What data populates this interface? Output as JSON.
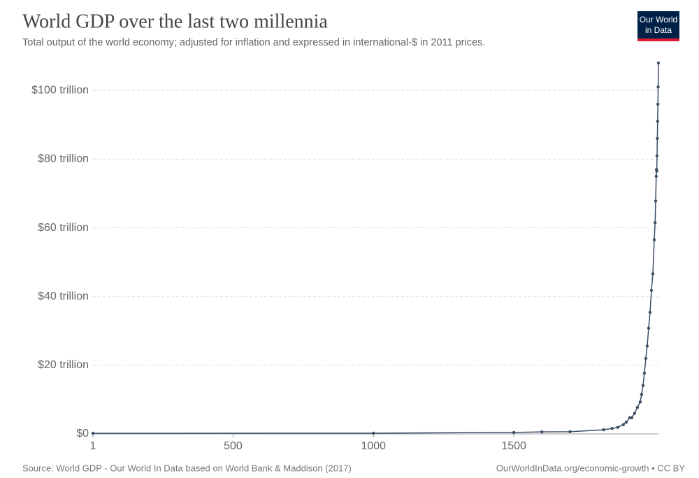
{
  "chart_data": {
    "type": "line",
    "title": "World GDP over the last two millennia",
    "subtitle": "Total output of the world economy; adjusted for inflation and expressed in international-$ in 2011 prices.",
    "logo": [
      "Our World",
      "in Data"
    ],
    "source": "Source: World GDP - Our World In Data based on World Bank & Maddison (2017)",
    "url": "OurWorldInData.org/economic-growth • CC BY",
    "x": [
      1,
      1000,
      1500,
      1600,
      1700,
      1820,
      1850,
      1870,
      1890,
      1900,
      1913,
      1920,
      1930,
      1940,
      1950,
      1955,
      1960,
      1965,
      1970,
      1975,
      1980,
      1985,
      1990,
      1995,
      2000,
      2003,
      2005,
      2007,
      2008,
      2009,
      2010,
      2011,
      2012,
      2013,
      2014,
      2015
    ],
    "series": [
      {
        "name": "World GDP",
        "color": "#3c4e66",
        "values": [
          0.18,
          0.21,
          0.43,
          0.58,
          0.64,
          1.2,
          1.6,
          1.9,
          2.7,
          3.4,
          4.7,
          4.7,
          6.0,
          7.7,
          9.3,
          11.5,
          14.1,
          17.7,
          22.0,
          25.6,
          30.8,
          35.4,
          41.8,
          46.6,
          56.5,
          61.5,
          67.8,
          75.0,
          77.0,
          76.5,
          81.0,
          86.0,
          91.0,
          96.0,
          101.0,
          108.0
        ]
      }
    ],
    "xlim": [
      1,
      2015
    ],
    "xticks": [
      1,
      500,
      1000,
      1500
    ],
    "ylim": [
      0,
      108
    ],
    "yticks": [
      {
        "value": 0,
        "label": "$0"
      },
      {
        "value": 20,
        "label": "$20 trillion"
      },
      {
        "value": 40,
        "label": "$40 trillion"
      },
      {
        "value": 60,
        "label": "$60 trillion"
      },
      {
        "value": 80,
        "label": "$80 trillion"
      },
      {
        "value": 100,
        "label": "$100 trillion"
      }
    ],
    "grid": true
  }
}
